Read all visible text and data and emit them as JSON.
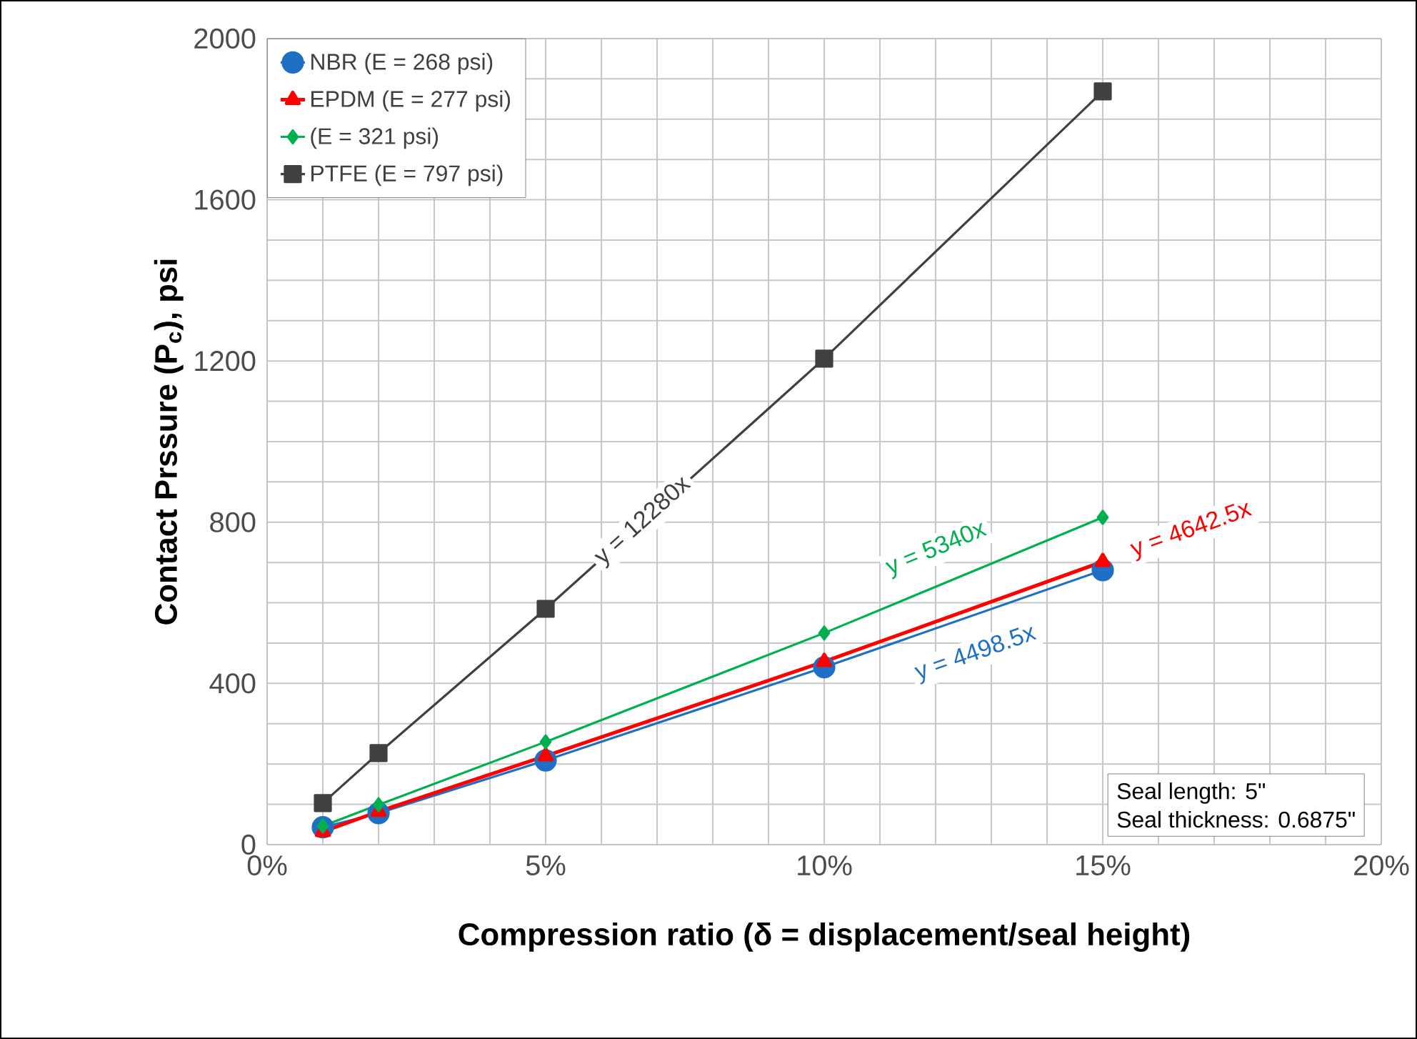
{
  "chart_data": {
    "type": "line",
    "xlabel": "Compression ratio (δ = displacement/seal height)",
    "ylabel": "Contact Prssure (P$_{c}$), psi",
    "x": [
      0.01,
      0.02,
      0.05,
      0.1,
      0.15
    ],
    "series": [
      {
        "name": "NBR (E = 268 psi)",
        "color": "#1f6fc5",
        "marker": "circle",
        "values": [
          43,
          78,
          209,
          440,
          681
        ]
      },
      {
        "name": "EPDM (E = 277 psi)",
        "color": "#ff0000",
        "marker": "triangle",
        "values": [
          32,
          82,
          220,
          454,
          702
        ]
      },
      {
        "name": "(E = 321 psi)",
        "color": "#00b050",
        "marker": "diamond",
        "values": [
          46,
          99,
          255,
          525,
          812
        ]
      },
      {
        "name": "PTFE (E = 797 psi)",
        "color": "#404040",
        "marker": "square",
        "values": [
          103,
          227,
          585,
          1206,
          1869
        ]
      }
    ],
    "xlim": [
      0,
      0.2
    ],
    "xticks": [
      {
        "value": 0,
        "label": "0%"
      },
      {
        "value": 0.05,
        "label": "5%"
      },
      {
        "value": 0.1,
        "label": "10%"
      },
      {
        "value": 0.15,
        "label": "15%"
      },
      {
        "value": 0.2,
        "label": "20%"
      }
    ],
    "ylim": [
      0,
      2000
    ],
    "yticks": [
      0,
      400,
      800,
      1200,
      1600,
      2000
    ],
    "grid": true,
    "legend": "top left",
    "annotations": [
      "y = 4498.5x",
      "y = 4642.5x",
      "y = 5340x",
      "y = 12280x",
      "Seal length: 5\"",
      "Seal thickness: 0.6875\""
    ]
  }
}
